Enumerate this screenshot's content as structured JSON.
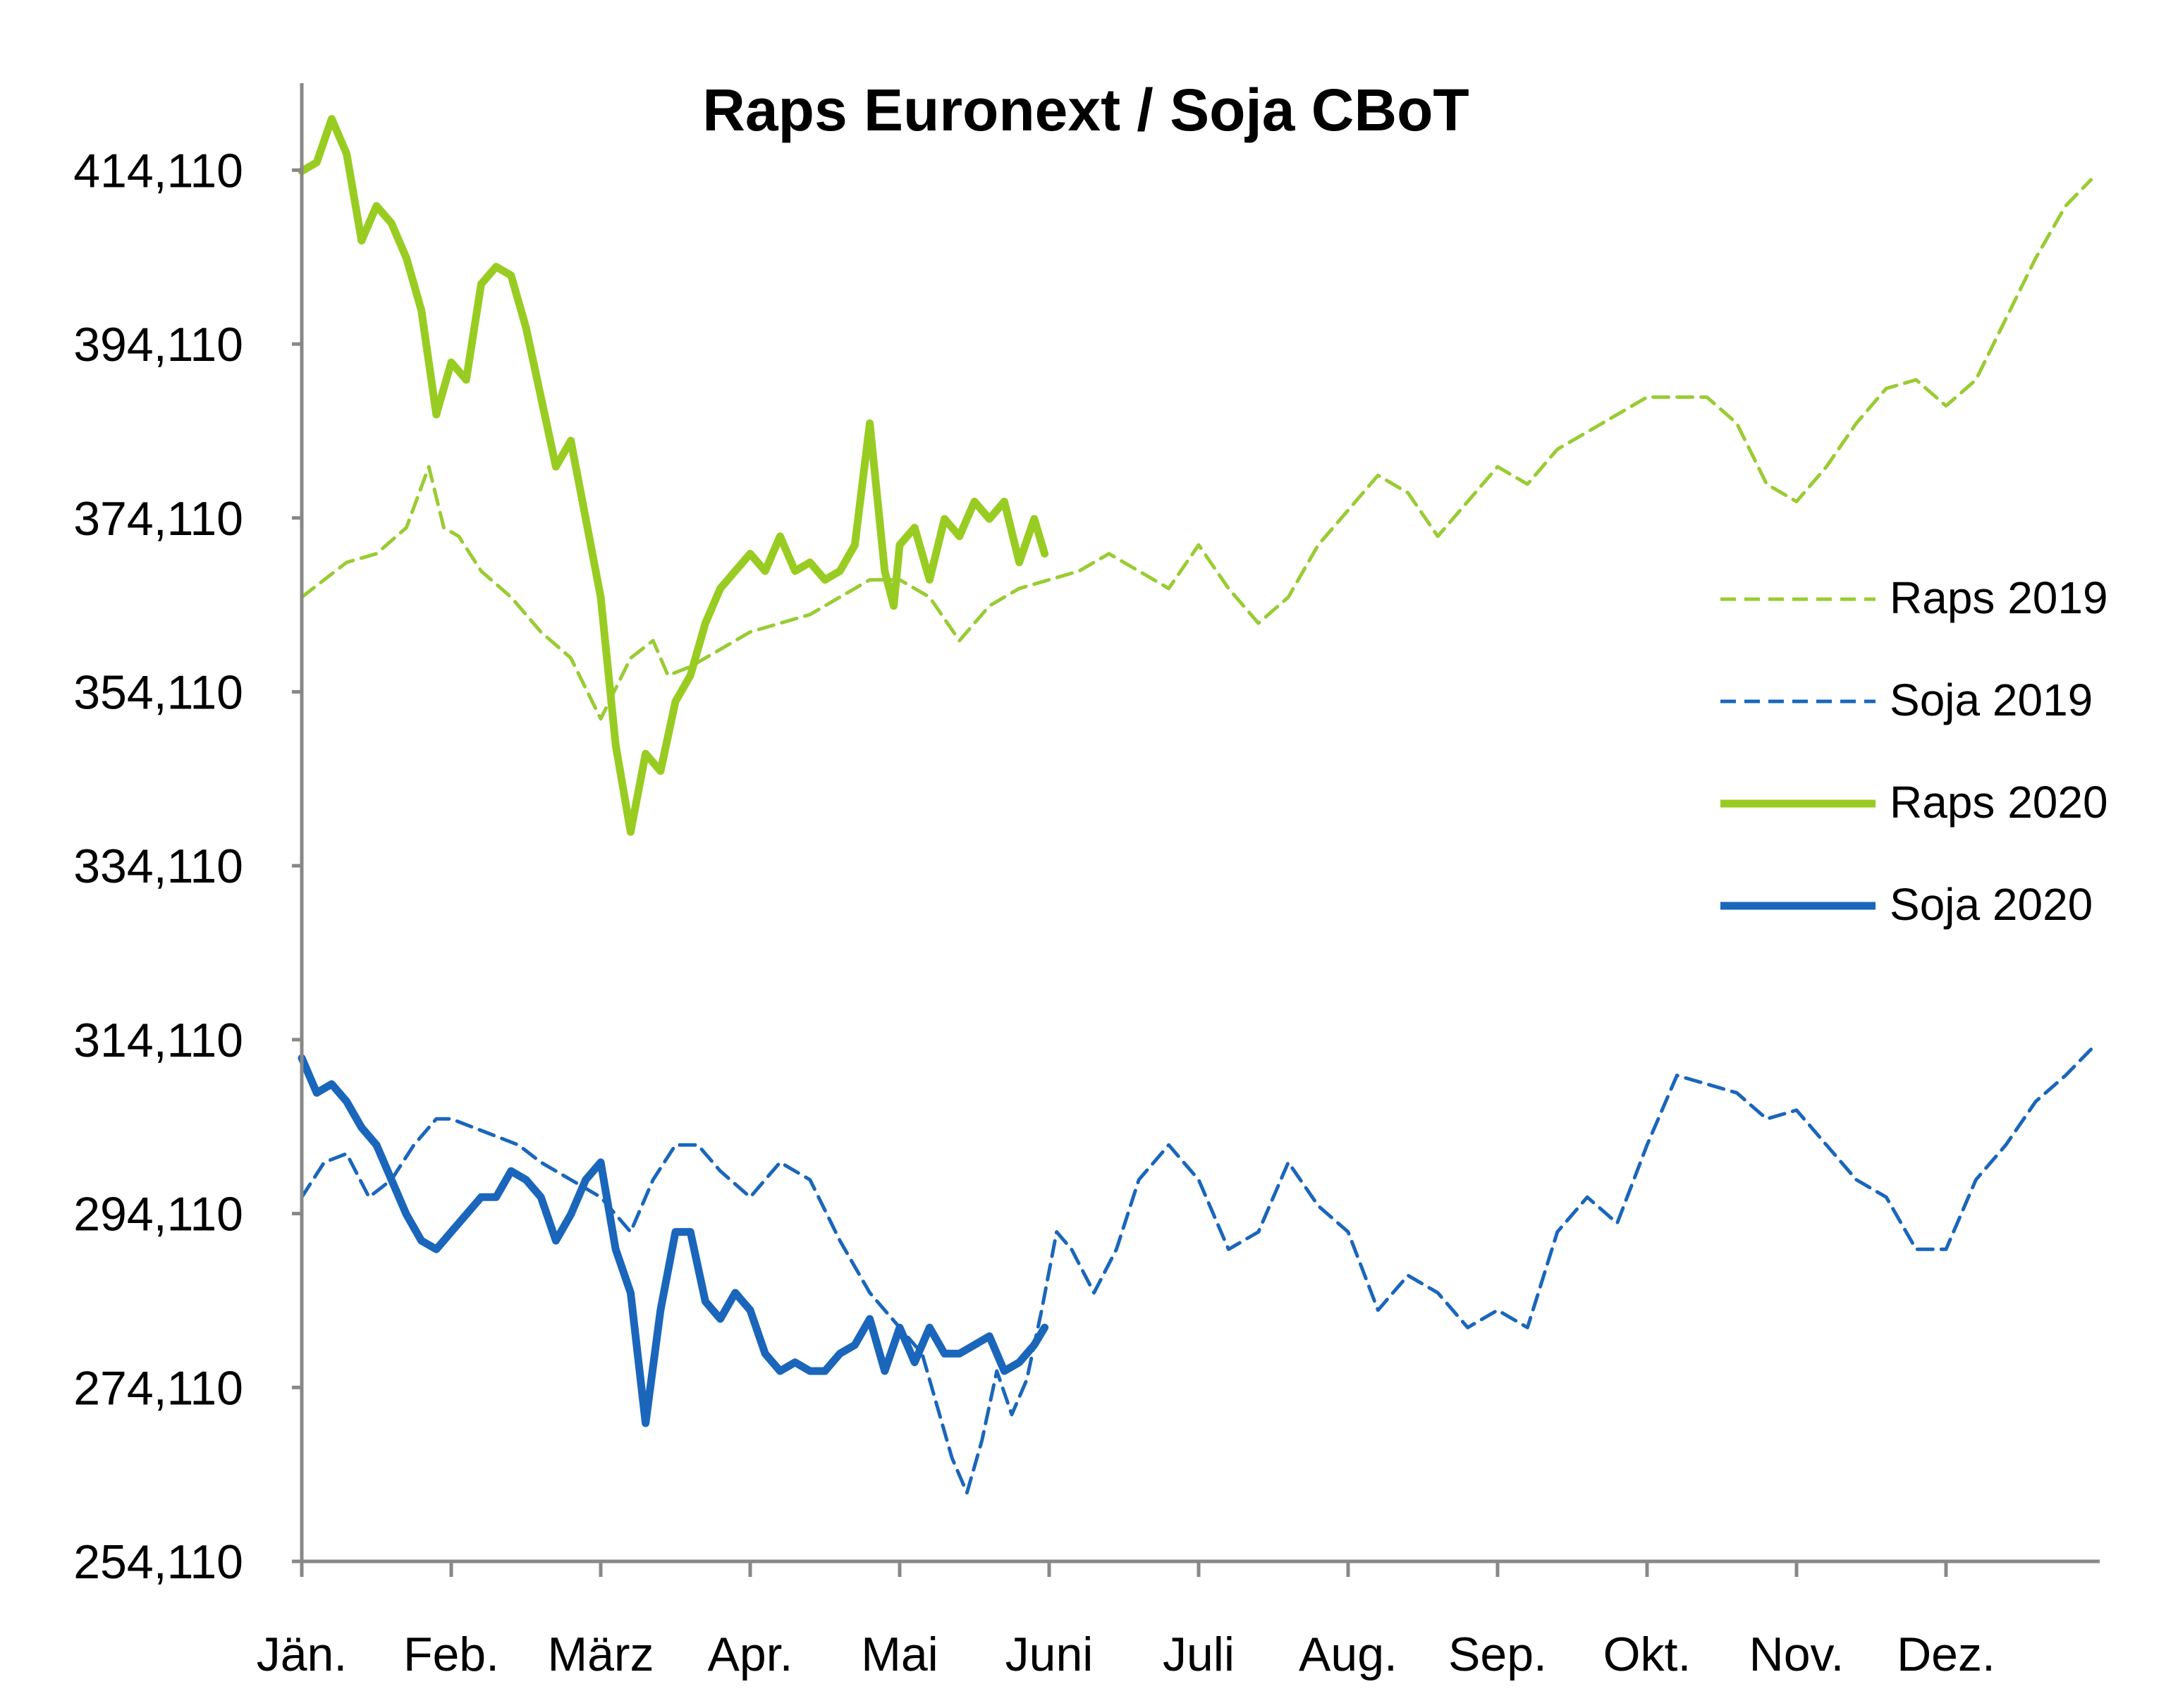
{
  "chart_data": {
    "type": "line",
    "title": "Raps Euronext / Soja CBoT",
    "xlabel": "",
    "ylabel": "",
    "ylim": [
      254.11,
      424.11
    ],
    "yticks": [
      "254,110",
      "274,110",
      "294,110",
      "314,110",
      "334,110",
      "354,110",
      "374,110",
      "394,110",
      "414,110"
    ],
    "ytick_values": [
      254.11,
      274.11,
      294.11,
      314.11,
      334.11,
      354.11,
      374.11,
      394.11,
      414.11
    ],
    "xlim": [
      0,
      12
    ],
    "categories": [
      "Jän.",
      "Feb.",
      "März",
      "Apr.",
      "Mai",
      "Juni",
      "Juli",
      "Aug.",
      "Sep.",
      "Okt.",
      "Nov.",
      "Dez."
    ],
    "grid": false,
    "legend_position": "right",
    "series": [
      {
        "name": "Raps 2019",
        "color": "#99cc33",
        "style": "dashed",
        "x": [
          0,
          0.15,
          0.3,
          0.5,
          0.7,
          0.85,
          0.95,
          1.05,
          1.2,
          1.4,
          1.6,
          1.8,
          2.0,
          2.2,
          2.35,
          2.45,
          2.6,
          2.8,
          3.0,
          3.2,
          3.4,
          3.6,
          3.8,
          4.0,
          4.2,
          4.4,
          4.5,
          4.6,
          4.8,
          5.0,
          5.2,
          5.4,
          5.6,
          5.8,
          6.0,
          6.2,
          6.4,
          6.6,
          6.8,
          7.0,
          7.2,
          7.4,
          7.6,
          7.8,
          8.0,
          8.2,
          8.4,
          8.6,
          8.8,
          9.0,
          9.2,
          9.4,
          9.6,
          9.8,
          10.0,
          10.2,
          10.4,
          10.6,
          10.8,
          11.0,
          11.2,
          11.4,
          11.6,
          11.8,
          11.97
        ],
        "values": [
          365,
          367,
          369,
          370,
          373,
          380,
          373,
          372,
          368,
          365,
          361,
          358,
          351,
          358,
          360,
          356,
          357,
          359,
          361,
          362,
          363,
          365,
          367,
          367,
          365,
          360,
          362,
          364,
          366,
          367,
          368,
          370,
          368,
          366,
          371,
          366,
          362,
          365,
          371,
          375,
          379,
          377,
          372,
          376,
          380,
          378,
          382,
          384,
          386,
          388,
          388,
          388,
          385,
          378,
          376,
          380,
          385,
          389,
          390,
          387,
          390,
          397,
          404,
          410,
          413
        ]
      },
      {
        "name": "Soja 2019",
        "color": "#1a66bb",
        "style": "dashed",
        "x": [
          0,
          0.15,
          0.3,
          0.45,
          0.6,
          0.75,
          0.9,
          1.0,
          1.15,
          1.3,
          1.45,
          1.6,
          1.8,
          2.0,
          2.2,
          2.35,
          2.5,
          2.65,
          2.8,
          3.0,
          3.2,
          3.4,
          3.6,
          3.8,
          4.0,
          4.15,
          4.25,
          4.35,
          4.45,
          4.55,
          4.65,
          4.75,
          4.85,
          4.95,
          5.05,
          5.15,
          5.3,
          5.45,
          5.6,
          5.8,
          6.0,
          6.2,
          6.4,
          6.6,
          6.8,
          7.0,
          7.2,
          7.4,
          7.6,
          7.8,
          8.0,
          8.2,
          8.4,
          8.6,
          8.8,
          9.0,
          9.2,
          9.4,
          9.6,
          9.8,
          10.0,
          10.2,
          10.4,
          10.6,
          10.8,
          11.0,
          11.2,
          11.4,
          11.6,
          11.8,
          11.97
        ],
        "values": [
          296,
          300,
          301,
          296,
          298,
          302,
          305,
          305,
          304,
          303,
          302,
          300,
          298,
          296,
          292,
          298,
          302,
          302,
          299,
          296,
          300,
          298,
          291,
          285,
          281,
          278,
          272,
          266,
          262,
          268,
          276,
          271,
          275,
          283,
          292,
          290,
          285,
          290,
          298,
          302,
          298,
          290,
          292,
          300,
          295,
          292,
          283,
          287,
          285,
          281,
          283,
          281,
          292,
          296,
          293,
          302,
          310,
          309,
          308,
          305,
          306,
          302,
          298,
          296,
          290,
          290,
          298,
          302,
          307,
          310,
          313
        ]
      },
      {
        "name": "Raps 2020",
        "color": "#99cc22",
        "style": "solid",
        "x": [
          0,
          0.1,
          0.2,
          0.3,
          0.4,
          0.5,
          0.6,
          0.7,
          0.8,
          0.9,
          1.0,
          1.1,
          1.2,
          1.3,
          1.4,
          1.5,
          1.6,
          1.7,
          1.8,
          1.9,
          2.0,
          2.1,
          2.2,
          2.3,
          2.4,
          2.5,
          2.6,
          2.7,
          2.8,
          2.9,
          3.0,
          3.1,
          3.2,
          3.3,
          3.4,
          3.5,
          3.6,
          3.7,
          3.8,
          3.9,
          3.96,
          4.0,
          4.1,
          4.2,
          4.3,
          4.4,
          4.5,
          4.6,
          4.7,
          4.8,
          4.9,
          4.97
        ],
        "values": [
          414,
          415,
          420,
          416,
          406,
          410,
          408,
          404,
          398,
          386,
          392,
          390,
          401,
          403,
          402,
          396,
          388,
          380,
          383,
          374,
          365,
          348,
          338,
          347,
          345,
          353,
          356,
          362,
          366,
          368,
          370,
          368,
          372,
          368,
          369,
          367,
          368,
          371,
          385,
          368,
          364,
          371,
          373,
          367,
          374,
          372,
          376,
          374,
          376,
          369,
          374,
          370
        ]
      },
      {
        "name": "Soja 2020",
        "color": "#1a66bb",
        "style": "solid",
        "x": [
          0,
          0.1,
          0.2,
          0.3,
          0.4,
          0.5,
          0.6,
          0.7,
          0.8,
          0.9,
          1.0,
          1.1,
          1.2,
          1.3,
          1.4,
          1.5,
          1.6,
          1.7,
          1.8,
          1.9,
          2.0,
          2.1,
          2.2,
          2.3,
          2.4,
          2.5,
          2.6,
          2.7,
          2.8,
          2.9,
          3.0,
          3.1,
          3.2,
          3.3,
          3.4,
          3.5,
          3.6,
          3.7,
          3.8,
          3.9,
          4.0,
          4.1,
          4.2,
          4.3,
          4.4,
          4.5,
          4.6,
          4.7,
          4.8,
          4.9,
          4.97
        ],
        "values": [
          312,
          308,
          309,
          307,
          304,
          302,
          298,
          294,
          291,
          290,
          292,
          294,
          296,
          296,
          299,
          298,
          296,
          291,
          294,
          298,
          300,
          290,
          285,
          270,
          283,
          292,
          292,
          284,
          282,
          285,
          283,
          278,
          276,
          277,
          276,
          276,
          278,
          279,
          282,
          276,
          281,
          277,
          281,
          278,
          278,
          279,
          280,
          276,
          277,
          279,
          281
        ]
      }
    ]
  }
}
